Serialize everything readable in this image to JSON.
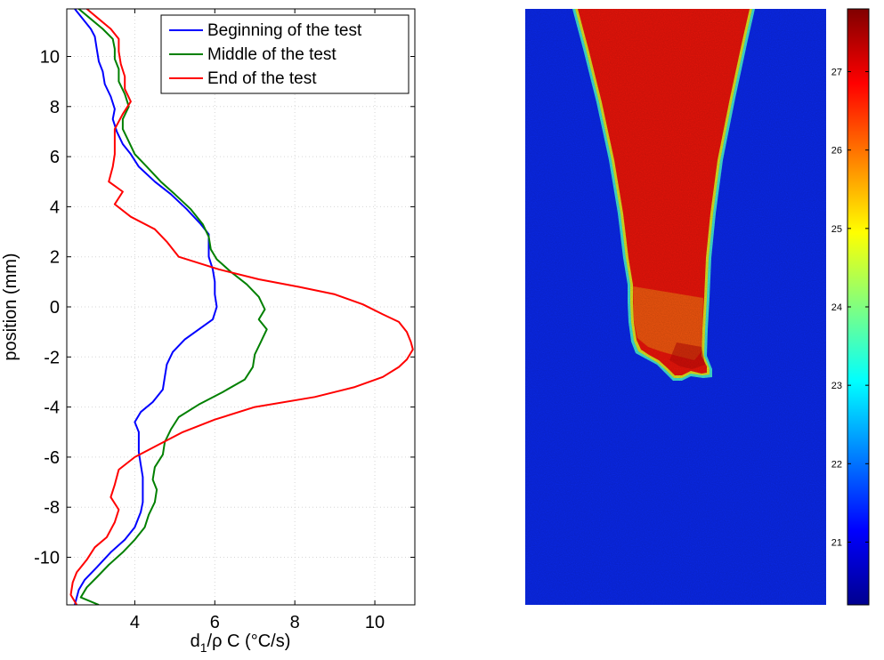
{
  "chart_data": [
    {
      "type": "line",
      "xlabel_main": "d",
      "xlabel_sub": "1",
      "xlabel_rest": "/ρ C (°C/s)",
      "ylabel": "position (mm)",
      "xlim": [
        2.3,
        11.0
      ],
      "ylim": [
        -11.9,
        11.9
      ],
      "xticks": [
        4,
        6,
        8,
        10
      ],
      "yticks": [
        -10,
        -8,
        -6,
        -4,
        -2,
        0,
        2,
        4,
        6,
        8,
        10
      ],
      "grid": true,
      "legend_position": "top-right",
      "series": [
        {
          "name": "Beginning of the test",
          "color": "#0000ff",
          "points": [
            [
              2.5,
              11.9
            ],
            [
              2.7,
              11.5
            ],
            [
              2.9,
              11.1
            ],
            [
              3.0,
              10.8
            ],
            [
              3.05,
              10.3
            ],
            [
              3.1,
              9.8
            ],
            [
              3.2,
              9.4
            ],
            [
              3.25,
              8.9
            ],
            [
              3.4,
              8.4
            ],
            [
              3.5,
              7.9
            ],
            [
              3.45,
              7.5
            ],
            [
              3.55,
              7.0
            ],
            [
              3.7,
              6.5
            ],
            [
              3.9,
              6.1
            ],
            [
              4.1,
              5.6
            ],
            [
              4.5,
              5.0
            ],
            [
              4.9,
              4.5
            ],
            [
              5.3,
              3.9
            ],
            [
              5.65,
              3.3
            ],
            [
              5.85,
              2.9
            ],
            [
              5.85,
              2.5
            ],
            [
              5.85,
              2.0
            ],
            [
              5.95,
              1.5
            ],
            [
              6.0,
              1.0
            ],
            [
              6.0,
              0.5
            ],
            [
              6.05,
              0.0
            ],
            [
              5.95,
              -0.5
            ],
            [
              5.6,
              -0.9
            ],
            [
              5.25,
              -1.3
            ],
            [
              4.95,
              -1.8
            ],
            [
              4.8,
              -2.3
            ],
            [
              4.75,
              -2.8
            ],
            [
              4.7,
              -3.3
            ],
            [
              4.45,
              -3.8
            ],
            [
              4.15,
              -4.2
            ],
            [
              4.0,
              -4.6
            ],
            [
              4.1,
              -5.0
            ],
            [
              4.1,
              -5.4
            ],
            [
              4.1,
              -5.8
            ],
            [
              4.15,
              -6.3
            ],
            [
              4.2,
              -6.8
            ],
            [
              4.2,
              -7.3
            ],
            [
              4.2,
              -7.8
            ],
            [
              4.15,
              -8.2
            ],
            [
              4.0,
              -8.8
            ],
            [
              3.75,
              -9.3
            ],
            [
              3.4,
              -9.8
            ],
            [
              3.05,
              -10.4
            ],
            [
              2.75,
              -10.9
            ],
            [
              2.6,
              -11.3
            ],
            [
              2.55,
              -11.6
            ],
            [
              2.5,
              -11.9
            ]
          ]
        },
        {
          "name": "Middle of the test",
          "color": "#008000",
          "points": [
            [
              2.6,
              11.9
            ],
            [
              2.9,
              11.5
            ],
            [
              3.2,
              11.1
            ],
            [
              3.45,
              10.7
            ],
            [
              3.5,
              10.3
            ],
            [
              3.5,
              9.9
            ],
            [
              3.6,
              9.5
            ],
            [
              3.6,
              9.0
            ],
            [
              3.75,
              8.5
            ],
            [
              3.85,
              8.0
            ],
            [
              3.7,
              7.5
            ],
            [
              3.7,
              7.1
            ],
            [
              3.85,
              6.6
            ],
            [
              4.0,
              6.1
            ],
            [
              4.3,
              5.6
            ],
            [
              4.65,
              5.0
            ],
            [
              5.0,
              4.5
            ],
            [
              5.4,
              3.9
            ],
            [
              5.7,
              3.3
            ],
            [
              5.85,
              2.8
            ],
            [
              5.9,
              2.3
            ],
            [
              6.05,
              1.9
            ],
            [
              6.4,
              1.4
            ],
            [
              6.8,
              0.9
            ],
            [
              7.1,
              0.4
            ],
            [
              7.25,
              -0.1
            ],
            [
              7.1,
              -0.5
            ],
            [
              7.3,
              -0.9
            ],
            [
              7.15,
              -1.4
            ],
            [
              7.0,
              -1.9
            ],
            [
              6.95,
              -2.4
            ],
            [
              6.75,
              -2.9
            ],
            [
              6.2,
              -3.4
            ],
            [
              5.6,
              -3.9
            ],
            [
              5.1,
              -4.4
            ],
            [
              4.9,
              -4.9
            ],
            [
              4.75,
              -5.4
            ],
            [
              4.7,
              -5.9
            ],
            [
              4.5,
              -6.4
            ],
            [
              4.45,
              -6.9
            ],
            [
              4.55,
              -7.3
            ],
            [
              4.5,
              -7.8
            ],
            [
              4.35,
              -8.3
            ],
            [
              4.25,
              -8.8
            ],
            [
              4.0,
              -9.3
            ],
            [
              3.7,
              -9.8
            ],
            [
              3.35,
              -10.3
            ],
            [
              3.05,
              -10.8
            ],
            [
              2.8,
              -11.2
            ],
            [
              2.65,
              -11.6
            ],
            [
              3.1,
              -11.9
            ]
          ]
        },
        {
          "name": "End of the test",
          "color": "#ff0000",
          "points": [
            [
              2.8,
              11.9
            ],
            [
              3.1,
              11.5
            ],
            [
              3.4,
              11.1
            ],
            [
              3.6,
              10.7
            ],
            [
              3.6,
              10.2
            ],
            [
              3.65,
              9.7
            ],
            [
              3.75,
              9.2
            ],
            [
              3.75,
              8.7
            ],
            [
              3.9,
              8.2
            ],
            [
              3.7,
              7.7
            ],
            [
              3.5,
              7.1
            ],
            [
              3.5,
              6.6
            ],
            [
              3.5,
              6.1
            ],
            [
              3.45,
              5.6
            ],
            [
              3.35,
              5.0
            ],
            [
              3.7,
              4.6
            ],
            [
              3.5,
              4.1
            ],
            [
              3.9,
              3.6
            ],
            [
              4.5,
              3.1
            ],
            [
              4.8,
              2.6
            ],
            [
              5.1,
              2.0
            ],
            [
              6.1,
              1.5
            ],
            [
              7.1,
              1.1
            ],
            [
              8.1,
              0.8
            ],
            [
              9.0,
              0.5
            ],
            [
              9.7,
              0.1
            ],
            [
              10.2,
              -0.3
            ],
            [
              10.6,
              -0.6
            ],
            [
              10.8,
              -1.0
            ],
            [
              10.9,
              -1.4
            ],
            [
              10.95,
              -1.7
            ],
            [
              10.8,
              -2.1
            ],
            [
              10.6,
              -2.4
            ],
            [
              10.2,
              -2.8
            ],
            [
              9.5,
              -3.2
            ],
            [
              8.5,
              -3.6
            ],
            [
              7.0,
              -4.0
            ],
            [
              6.0,
              -4.5
            ],
            [
              5.2,
              -5.0
            ],
            [
              4.6,
              -5.5
            ],
            [
              4.0,
              -6.0
            ],
            [
              3.6,
              -6.5
            ],
            [
              3.5,
              -7.1
            ],
            [
              3.4,
              -7.6
            ],
            [
              3.6,
              -8.1
            ],
            [
              3.5,
              -8.6
            ],
            [
              3.3,
              -9.2
            ],
            [
              3.0,
              -9.6
            ],
            [
              2.8,
              -10.1
            ],
            [
              2.55,
              -10.6
            ],
            [
              2.45,
              -11.0
            ],
            [
              2.4,
              -11.5
            ],
            [
              2.55,
              -11.9
            ]
          ]
        }
      ]
    },
    {
      "type": "heatmap",
      "colorbar_ticks": [
        21,
        22,
        23,
        24,
        25,
        26,
        27
      ],
      "colorbar_range": [
        20.2,
        27.8
      ],
      "background_value": 21.2,
      "plume_value": 26.9
    }
  ]
}
